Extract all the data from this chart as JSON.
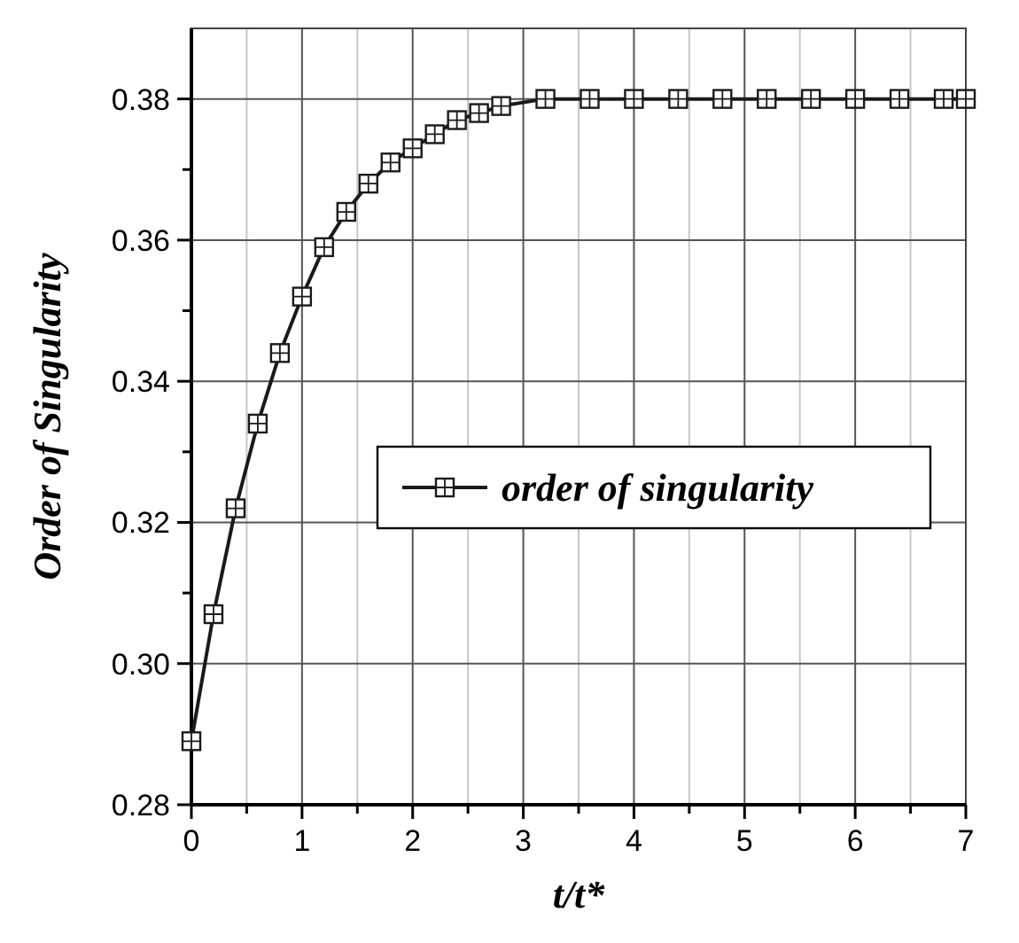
{
  "chart_data": {
    "type": "line",
    "xlabel": "t/t*",
    "ylabel": "Order of Singularity",
    "x": [
      0,
      0.2,
      0.4,
      0.6,
      0.8,
      1.0,
      1.2,
      1.4,
      1.6,
      1.8,
      2.0,
      2.2,
      2.4,
      2.6,
      2.8,
      3.2,
      3.6,
      4.0,
      4.4,
      4.8,
      5.2,
      5.6,
      6.0,
      6.4,
      6.8,
      7.0
    ],
    "series": [
      {
        "name": "order of singularity",
        "color": "#1a1a1a",
        "values": [
          0.289,
          0.307,
          0.322,
          0.334,
          0.344,
          0.352,
          0.359,
          0.364,
          0.368,
          0.371,
          0.373,
          0.375,
          0.377,
          0.378,
          0.379,
          0.38,
          0.38,
          0.38,
          0.38,
          0.38,
          0.38,
          0.38,
          0.38,
          0.38,
          0.38,
          0.38
        ]
      }
    ],
    "xlim": [
      0,
      7
    ],
    "ylim": [
      0.28,
      0.39
    ],
    "xticks": [
      0,
      {
        "value": 0.5,
        "label": null
      },
      1,
      {
        "value": 1.5,
        "label": null
      },
      2,
      {
        "value": 2.5,
        "label": null
      },
      3,
      {
        "value": 3.5,
        "label": null
      },
      4,
      {
        "value": 4.5,
        "label": null
      },
      5,
      {
        "value": 5.5,
        "label": null
      },
      6,
      {
        "value": 6.5,
        "label": null
      },
      7
    ],
    "yticks": [
      {
        "value": 0.28,
        "label": "0.28"
      },
      {
        "value": 0.29,
        "label": null
      },
      {
        "value": 0.3,
        "label": "0.30"
      },
      {
        "value": 0.31,
        "label": null
      },
      {
        "value": 0.32,
        "label": "0.32"
      },
      {
        "value": 0.33,
        "label": null
      },
      {
        "value": 0.34,
        "label": "0.34"
      },
      {
        "value": 0.35,
        "label": null
      },
      {
        "value": 0.36,
        "label": "0.36"
      },
      {
        "value": 0.37,
        "label": null
      },
      {
        "value": 0.38,
        "label": "0.38"
      }
    ],
    "grid": true,
    "legend": "right",
    "marker": "square",
    "line_style": "solid"
  }
}
